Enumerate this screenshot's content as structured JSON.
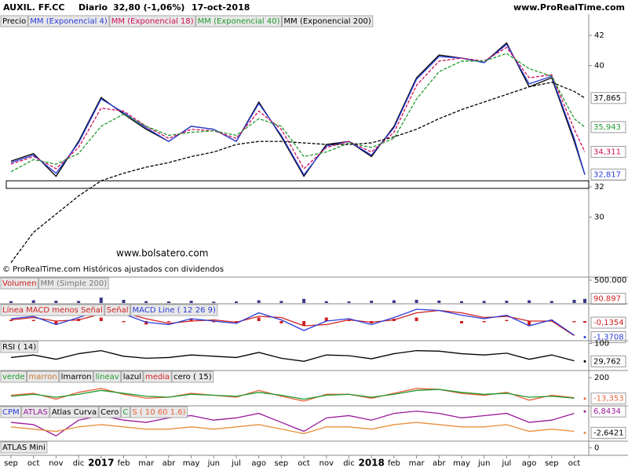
{
  "chart_data": [
    {
      "type": "line",
      "title": "AUXIL. FF.CC",
      "period": "Diario",
      "quote": "32,80 (-1,06%)",
      "date": "17-oct-2018",
      "source": "www.ProRealTime.com",
      "annotations": [
        "www.bolsatero.com",
        "© ProRealTime.com  Históricos ajustados con dividendos"
      ],
      "categories": [
        "sep",
        "oct",
        "nov",
        "dic",
        "2017",
        "feb",
        "mar",
        "abr",
        "may",
        "jun",
        "jul",
        "ago",
        "sep",
        "oct",
        "nov",
        "dic",
        "2018",
        "feb",
        "mar",
        "abr",
        "may",
        "jun",
        "jul",
        "ago",
        "sep",
        "oct"
      ],
      "ylim": [
        26.2,
        43.4
      ],
      "yticks": [
        30,
        32,
        40,
        42
      ],
      "zone": [
        31.9,
        32.4
      ],
      "series": [
        {
          "name": "Precio",
          "color": "#000000",
          "values": [
            33.7,
            34.2,
            32.7,
            35.0,
            37.9,
            36.8,
            35.8,
            35.0,
            36.0,
            35.8,
            35.0,
            37.6,
            35.3,
            32.7,
            34.8,
            35.0,
            34.0,
            36.0,
            39.2,
            40.7,
            40.5,
            40.2,
            41.5,
            38.6,
            39.2,
            35.0
          ],
          "last": 32.8,
          "last_label": "32,80",
          "label_bg": "#ffd21f"
        },
        {
          "name": "MM (Exponencial 4)",
          "color": "#2a3bd9",
          "values": [
            33.6,
            34.1,
            32.9,
            34.9,
            37.8,
            36.9,
            35.9,
            35.0,
            36.0,
            35.8,
            35.0,
            37.5,
            35.4,
            32.8,
            34.7,
            35.0,
            34.1,
            35.9,
            39.1,
            40.6,
            40.5,
            40.2,
            41.4,
            38.8,
            39.3,
            35.2
          ],
          "last": 32.817,
          "last_label": "32,817"
        },
        {
          "name": "MM (Exponencial 18)",
          "color": "#d0105a",
          "dash": true,
          "values": [
            33.5,
            34.0,
            33.2,
            34.6,
            37.2,
            37.0,
            36.0,
            35.2,
            35.8,
            35.7,
            35.2,
            37.0,
            35.8,
            33.2,
            34.6,
            35.0,
            34.3,
            35.6,
            38.7,
            40.3,
            40.5,
            40.3,
            41.2,
            39.2,
            39.4,
            35.8
          ],
          "last": 34.311,
          "last_label": "34,311"
        },
        {
          "name": "MM (Exponencial 40)",
          "color": "#1f9a2e",
          "dash": true,
          "values": [
            33.0,
            33.8,
            33.5,
            34.2,
            36.0,
            36.8,
            36.0,
            35.4,
            35.6,
            35.7,
            35.4,
            36.5,
            36.0,
            34.0,
            34.3,
            34.9,
            34.6,
            35.2,
            37.8,
            39.6,
            40.3,
            40.3,
            40.8,
            39.8,
            39.3,
            36.5
          ],
          "last": 35.943,
          "last_label": "35,943"
        },
        {
          "name": "MM (Exponencial 200)",
          "color": "#000000",
          "dash": true,
          "values": [
            27.0,
            29.0,
            30.2,
            31.4,
            32.4,
            32.9,
            33.3,
            33.6,
            34.0,
            34.3,
            34.8,
            35.0,
            35.0,
            34.9,
            34.8,
            34.8,
            34.9,
            35.3,
            35.8,
            36.5,
            37.1,
            37.6,
            38.1,
            38.6,
            38.9,
            38.3
          ],
          "last": 37.865,
          "last_label": "37,865"
        }
      ]
    },
    {
      "type": "bar",
      "legend": [
        {
          "text": "Volumen",
          "color": "#d02020"
        },
        {
          "text": "MM (Simple 200)",
          "color": "#777777"
        }
      ],
      "ylim": [
        0,
        550000
      ],
      "yticks": [
        {
          "value": 500000,
          "label": "500.000"
        }
      ],
      "series": [
        {
          "kind": "bar",
          "color": "#3a3a8a",
          "values": [
            40000,
            60000,
            50000,
            45000,
            120000,
            70000,
            40000,
            35000,
            50000,
            30000,
            35000,
            60000,
            45000,
            90000,
            40000,
            35000,
            50000,
            60000,
            70000,
            55000,
            40000,
            45000,
            50000,
            60000,
            45000,
            70000
          ],
          "last": 90897,
          "last_label": "90.897",
          "label_color": "#d02020"
        }
      ]
    },
    {
      "type": "line",
      "legend": [
        {
          "text": "Línea MACD menos Señal",
          "color": "#d02020"
        },
        {
          "text": "Señal",
          "color": "#d02020"
        },
        {
          "text": "MACD Line ( 12 26 9)",
          "color": "#2a3bd9"
        }
      ],
      "ylim": [
        -1.6,
        1.4
      ],
      "series": [
        {
          "kind": "bar",
          "color": "#d02020",
          "values": [
            0.1,
            0.1,
            -0.3,
            0.2,
            0.3,
            -0.1,
            -0.3,
            -0.1,
            0.2,
            -0.1,
            -0.1,
            0.3,
            -0.2,
            -0.4,
            0.3,
            0.1,
            -0.2,
            0.2,
            0.3,
            0.0,
            -0.2,
            -0.1,
            0.1,
            -0.4,
            0.1,
            -0.1
          ],
          "last": -0.1354,
          "last_label": "-0,1354"
        },
        {
          "kind": "line",
          "color": "#d02020",
          "values": [
            0.1,
            0.3,
            0.0,
            0.1,
            0.6,
            0.7,
            0.2,
            -0.2,
            0.0,
            0.1,
            -0.1,
            0.4,
            0.3,
            -0.4,
            -0.3,
            0.1,
            -0.1,
            0.1,
            0.7,
            0.9,
            0.7,
            0.3,
            0.4,
            0.0,
            0.0,
            -1.24
          ]
        },
        {
          "kind": "line",
          "color": "#2a3bd9",
          "values": [
            0.2,
            0.4,
            -0.3,
            0.3,
            0.9,
            0.6,
            -0.1,
            -0.3,
            0.2,
            0.0,
            -0.2,
            0.7,
            0.1,
            -0.8,
            0.0,
            0.2,
            -0.3,
            0.3,
            1.0,
            0.9,
            0.5,
            0.2,
            0.5,
            -0.4,
            0.1,
            -1.2
          ],
          "last": -1.3708,
          "last_label": "-1,3708"
        }
      ]
    },
    {
      "type": "line",
      "legend": [
        {
          "text": "RSI ( 14)",
          "color": "#000000"
        }
      ],
      "ylim": [
        0,
        108
      ],
      "yticks": [
        100
      ],
      "series": [
        {
          "kind": "line",
          "color": "#000000",
          "values": [
            45,
            55,
            38,
            60,
            72,
            50,
            42,
            45,
            55,
            50,
            45,
            65,
            42,
            30,
            55,
            52,
            40,
            60,
            72,
            70,
            60,
            55,
            62,
            38,
            55,
            32
          ],
          "last": 29.762,
          "last_label": "29,762"
        }
      ]
    },
    {
      "type": "line",
      "legend": [
        {
          "text": "verde",
          "color": "#1f9a2e"
        },
        {
          "text": "marron",
          "color": "#c87a3a"
        },
        {
          "text": "lmarron",
          "color": "#000000"
        },
        {
          "text": "lineav",
          "color": "#1f9a2e"
        },
        {
          "text": "lazul",
          "color": "#000000"
        },
        {
          "text": "media",
          "color": "#d02020"
        },
        {
          "text": "cero ( 15)",
          "color": "#000000"
        }
      ],
      "ylim": [
        -80,
        265
      ],
      "yticks": [
        200
      ],
      "series": [
        {
          "kind": "line",
          "color": "#e8603a",
          "values": [
            20,
            40,
            -20,
            50,
            90,
            30,
            -10,
            0,
            40,
            20,
            0,
            70,
            10,
            -40,
            30,
            30,
            -10,
            40,
            90,
            80,
            40,
            20,
            50,
            -30,
            20,
            -5
          ],
          "last": -13.353,
          "last_label": "-13,353"
        },
        {
          "kind": "line",
          "color": "#1f9a2e",
          "values": [
            10,
            30,
            0,
            30,
            70,
            40,
            10,
            0,
            30,
            20,
            10,
            50,
            20,
            -20,
            20,
            30,
            0,
            30,
            70,
            80,
            50,
            30,
            40,
            0,
            10,
            -10
          ]
        }
      ]
    },
    {
      "type": "line",
      "legend": [
        {
          "text": "CPM",
          "color": "#2a3bd9"
        },
        {
          "text": "ATLAS",
          "color": "#9a1a9a"
        },
        {
          "text": "Atlas Curva",
          "color": "#000000"
        },
        {
          "text": "Cero",
          "color": "#000000"
        },
        {
          "text": "C",
          "color": "#1f9a2e"
        },
        {
          "text": "S ( 10 60 1.6)",
          "color": "#e8603a"
        }
      ],
      "ylim": [
        -6,
        9
      ],
      "series": [
        {
          "kind": "line",
          "color": "#9a1a9a",
          "values": [
            2,
            1,
            -4,
            3,
            5,
            3,
            2,
            4,
            5,
            3,
            4,
            6,
            2,
            -2,
            4,
            5,
            3,
            6,
            7,
            6,
            4,
            5,
            6,
            2,
            3,
            6
          ],
          "last": 6.8434,
          "last_label": "6,8434"
        },
        {
          "kind": "line",
          "color": "#e8903a",
          "values": [
            0,
            -1,
            -2,
            0,
            1,
            0,
            -1,
            -1,
            0,
            -1,
            0,
            1,
            -1,
            -3,
            0,
            0,
            -1,
            1,
            2,
            1,
            0,
            0,
            1,
            -2,
            -1,
            -2
          ],
          "last": -2.6421,
          "last_label": "-2,6421",
          "label_color": "#000000"
        }
      ]
    },
    {
      "type": "line",
      "legend": [
        {
          "text": "ATLAS Mini",
          "color": "#000000"
        }
      ],
      "ylim": [
        -1,
        1
      ],
      "yticks": [
        0
      ],
      "series": []
    }
  ]
}
